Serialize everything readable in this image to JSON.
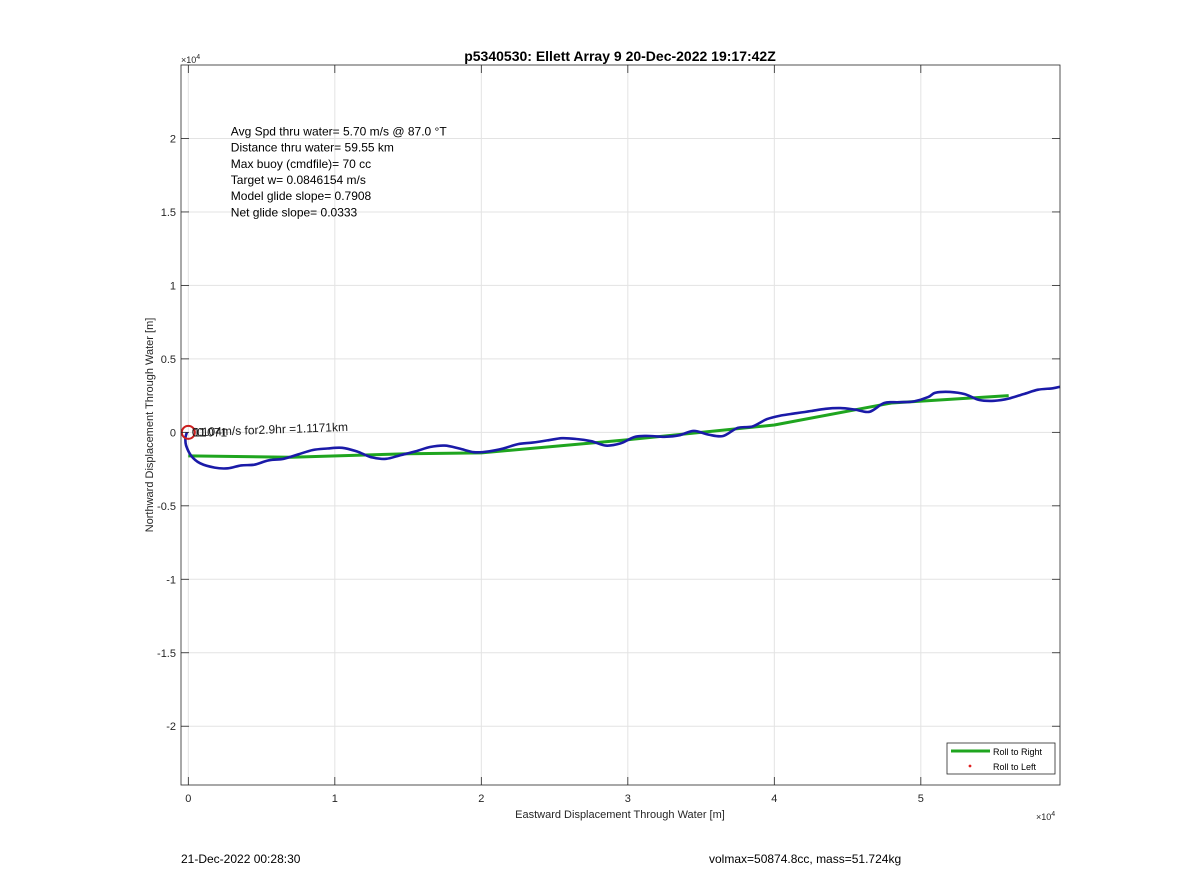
{
  "chart_data": {
    "type": "line",
    "title": "p5340530: Ellett Array 9 20-Dec-2022 19:17:42Z",
    "xlabel": "Eastward Displacement Through Water [m]",
    "ylabel": "Northward Displacement Through Water [m]",
    "xlim": [
      -500,
      59500
    ],
    "ylim": [
      -24000,
      25000
    ],
    "x_ticks": [
      0,
      10000,
      20000,
      30000,
      40000,
      50000
    ],
    "x_tick_labels": [
      "0",
      "1",
      "2",
      "3",
      "4",
      "5"
    ],
    "y_ticks": [
      -20000,
      -15000,
      -10000,
      -5000,
      0,
      5000,
      10000,
      15000,
      20000
    ],
    "y_tick_labels": [
      "-2",
      "-1.5",
      "-1",
      "-0.5",
      "0",
      "0.5",
      "1",
      "1.5",
      "2"
    ],
    "x_exponent_label": "×10",
    "y_exponent_label": "×10",
    "exponent": "4",
    "grid": true,
    "legend_position": "bottom-right",
    "series": [
      {
        "name": "Roll to Right",
        "color": "#1fa51f",
        "style": "solid-thick",
        "points": [
          [
            0,
            -1600
          ],
          [
            7000,
            -1700
          ],
          [
            15000,
            -1450
          ],
          [
            20000,
            -1400
          ],
          [
            30000,
            -500
          ],
          [
            40000,
            500
          ],
          [
            48000,
            2000
          ],
          [
            56000,
            2500
          ]
        ]
      },
      {
        "name": "Roll to Left",
        "color": "#e02020",
        "style": "dot",
        "points": []
      }
    ],
    "track": {
      "color": "#1a1aa8",
      "points": [
        [
          -100,
          0
        ],
        [
          -200,
          -400
        ],
        [
          -150,
          -900
        ],
        [
          200,
          -1600
        ],
        [
          800,
          -2100
        ],
        [
          1800,
          -2400
        ],
        [
          2700,
          -2450
        ],
        [
          3600,
          -2250
        ],
        [
          4500,
          -2200
        ],
        [
          5500,
          -1900
        ],
        [
          6500,
          -1800
        ],
        [
          7500,
          -1500
        ],
        [
          8500,
          -1200
        ],
        [
          9500,
          -1100
        ],
        [
          10500,
          -1050
        ],
        [
          11500,
          -1300
        ],
        [
          12500,
          -1700
        ],
        [
          13500,
          -1800
        ],
        [
          14500,
          -1550
        ],
        [
          15500,
          -1300
        ],
        [
          16500,
          -1000
        ],
        [
          17500,
          -900
        ],
        [
          18500,
          -1100
        ],
        [
          19500,
          -1350
        ],
        [
          20500,
          -1300
        ],
        [
          21500,
          -1100
        ],
        [
          22500,
          -800
        ],
        [
          23500,
          -700
        ],
        [
          24500,
          -550
        ],
        [
          25500,
          -400
        ],
        [
          26500,
          -450
        ],
        [
          27500,
          -600
        ],
        [
          28500,
          -900
        ],
        [
          29500,
          -750
        ],
        [
          30500,
          -300
        ],
        [
          31500,
          -250
        ],
        [
          32500,
          -300
        ],
        [
          33500,
          -200
        ],
        [
          34500,
          100
        ],
        [
          35500,
          -150
        ],
        [
          36500,
          -250
        ],
        [
          37500,
          300
        ],
        [
          38500,
          400
        ],
        [
          39500,
          900
        ],
        [
          40500,
          1150
        ],
        [
          41500,
          1300
        ],
        [
          42500,
          1450
        ],
        [
          43500,
          1600
        ],
        [
          44500,
          1650
        ],
        [
          45500,
          1550
        ],
        [
          46500,
          1400
        ],
        [
          47500,
          2000
        ],
        [
          48500,
          2050
        ],
        [
          49500,
          2100
        ],
        [
          50500,
          2400
        ],
        [
          51000,
          2700
        ],
        [
          52000,
          2750
        ],
        [
          53000,
          2600
        ],
        [
          54000,
          2200
        ],
        [
          55000,
          2150
        ],
        [
          56000,
          2300
        ],
        [
          57000,
          2600
        ],
        [
          58000,
          2900
        ],
        [
          59000,
          3000
        ],
        [
          59500,
          3100
        ]
      ]
    },
    "start_marker": {
      "x": 0,
      "y": 0,
      "color": "#cc1f1f"
    },
    "annotations": [
      {
        "text": "Avg Spd thru water=  5.70 m/s @  87.0 °T",
        "x": 2900,
        "y": 20200
      },
      {
        "text": "Distance thru water= 59.55 km",
        "x": 2900,
        "y": 19100
      },
      {
        "text": "Max buoy (cmdfile)= 70 cc",
        "x": 2900,
        "y": 18000
      },
      {
        "text": "Target w= 0.0846154 m/s",
        "x": 2900,
        "y": 16900
      },
      {
        "text": "Model glide slope= 0.7908",
        "x": 2900,
        "y": 15800
      },
      {
        "text": "Net glide slope= 0.0333",
        "x": 2900,
        "y": 14700
      }
    ],
    "overlap_labels": [
      {
        "text": "0.104m/s for2.9hr =1.1171km",
        "x": 250,
        "y": 0,
        "angle": -2
      },
      {
        "text": "0.071",
        "x": 600,
        "y": -10,
        "angle": 0
      },
      {
        "text": "11",
        "x": 350,
        "y": -10,
        "angle": 0
      }
    ]
  },
  "footer": {
    "left": "21-Dec-2022 00:28:30",
    "right": "volmax=50874.8cc, mass=51.724kg"
  }
}
